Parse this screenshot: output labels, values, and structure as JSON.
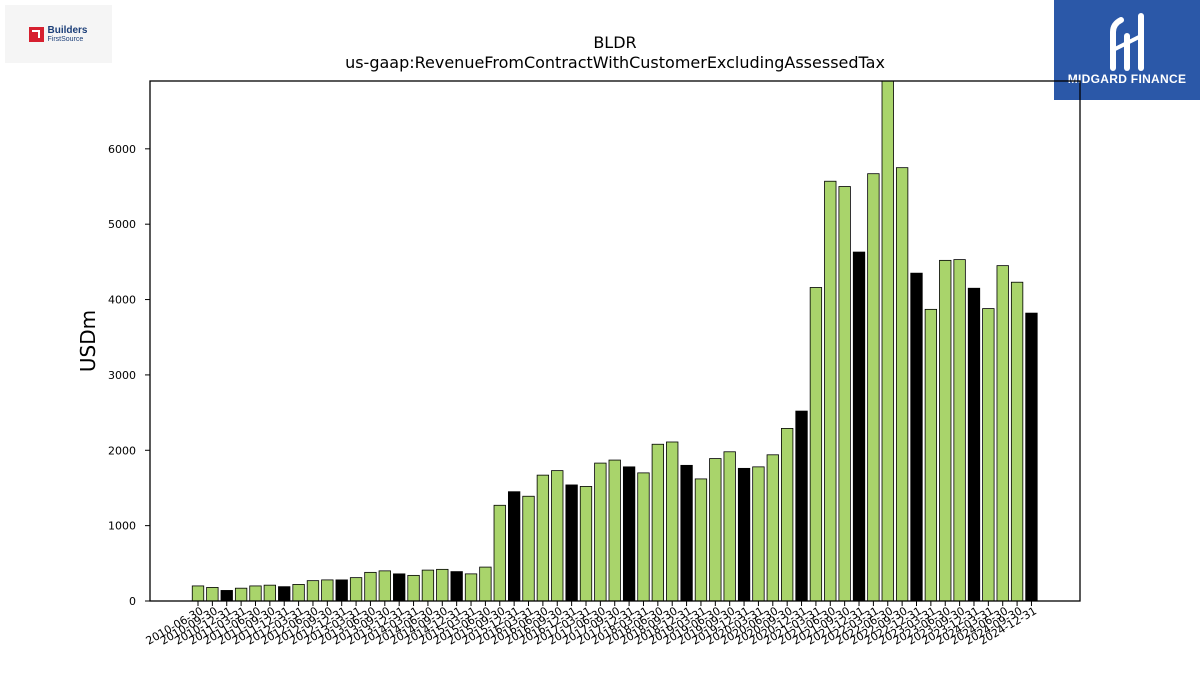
{
  "logos": {
    "left_line1": "Builders",
    "left_line2": "FirstSource",
    "right_brand": "MIDGARD FINANCE"
  },
  "colors": {
    "bar_light": "#a9d46b",
    "bar_dark": "#000000",
    "brand_blue": "#2b58a8"
  },
  "chart_data": {
    "type": "bar",
    "title": "BLDR",
    "subtitle": "us-gaap:RevenueFromContractWithCustomerExcludingAssessedTax",
    "xlabel": "",
    "ylabel": "USDm",
    "ylim": [
      0,
      6900
    ],
    "yticks": [
      0,
      1000,
      2000,
      3000,
      4000,
      5000,
      6000
    ],
    "grid": false,
    "categories": [
      "2010-06-30",
      "2010-09-30",
      "2010-12-31",
      "2011-03-31",
      "2011-06-30",
      "2011-09-30",
      "2011-12-31",
      "2012-03-31",
      "2012-06-30",
      "2012-09-30",
      "2012-12-31",
      "2013-03-31",
      "2013-06-30",
      "2013-09-30",
      "2013-12-31",
      "2014-03-31",
      "2014-06-30",
      "2014-09-30",
      "2014-12-31",
      "2015-03-31",
      "2015-06-30",
      "2015-09-30",
      "2015-12-31",
      "2016-03-31",
      "2016-06-30",
      "2016-09-30",
      "2016-12-31",
      "2017-03-31",
      "2017-06-30",
      "2017-09-30",
      "2017-12-31",
      "2018-03-31",
      "2018-06-30",
      "2018-09-30",
      "2018-12-31",
      "2019-03-31",
      "2019-06-30",
      "2019-09-30",
      "2019-12-31",
      "2020-03-31",
      "2020-06-30",
      "2020-09-30",
      "2020-12-31",
      "2021-03-31",
      "2021-06-30",
      "2021-09-30",
      "2021-12-31",
      "2022-03-31",
      "2022-06-30",
      "2022-09-30",
      "2022-12-31",
      "2023-03-31",
      "2023-06-30",
      "2023-09-30",
      "2023-12-31",
      "2024-03-31",
      "2024-06-30",
      "2024-09-30",
      "2024-12-31"
    ],
    "values": [
      200,
      180,
      140,
      170,
      200,
      210,
      190,
      220,
      270,
      280,
      280,
      310,
      380,
      400,
      360,
      340,
      410,
      420,
      390,
      360,
      450,
      1270,
      1450,
      1390,
      1670,
      1730,
      1540,
      1520,
      1830,
      1870,
      1780,
      1700,
      2080,
      2110,
      1800,
      1620,
      1890,
      1980,
      1760,
      1780,
      1940,
      2290,
      2520,
      4160,
      5570,
      5500,
      4630,
      5670,
      6900,
      5750,
      4350,
      3870,
      4520,
      4530,
      4150,
      3880,
      4450,
      4230,
      3820
    ],
    "bar_shade": [
      "light",
      "light",
      "dark",
      "light",
      "light",
      "light",
      "dark",
      "light",
      "light",
      "light",
      "dark",
      "light",
      "light",
      "light",
      "dark",
      "light",
      "light",
      "light",
      "dark",
      "light",
      "light",
      "light",
      "dark",
      "light",
      "light",
      "light",
      "dark",
      "light",
      "light",
      "light",
      "dark",
      "light",
      "light",
      "light",
      "dark",
      "light",
      "light",
      "light",
      "dark",
      "light",
      "light",
      "light",
      "dark",
      "light",
      "light",
      "light",
      "dark",
      "light",
      "light",
      "light",
      "dark",
      "light",
      "light",
      "light",
      "dark",
      "light",
      "light",
      "light",
      "dark"
    ]
  }
}
